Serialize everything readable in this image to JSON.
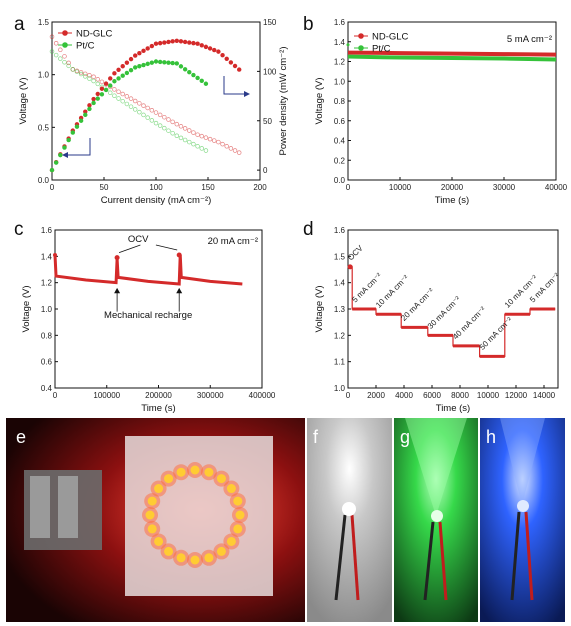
{
  "panels": {
    "a": "a",
    "b": "b",
    "c": "c",
    "d": "d",
    "e": "e",
    "f": "f",
    "g": "g",
    "h": "h"
  },
  "colors": {
    "ndglc": "#d42a2a",
    "ptc": "#35c23a",
    "axis": "#111111"
  },
  "photos": {
    "e": {
      "name": "led-ring-photo",
      "bg": "#1a0606",
      "led": "#ffcc33"
    },
    "f": {
      "name": "white-led-photo",
      "glow": "#ffffff"
    },
    "g": {
      "name": "green-led-photo",
      "glow": "#33ff55"
    },
    "h": {
      "name": "blue-led-photo",
      "glow": "#2a5bff"
    }
  },
  "chart_data": [
    {
      "panel": "a",
      "type": "scatter",
      "xlabel": "Current density (mA cm⁻²)",
      "ylabel": "Voltage (V)",
      "y2label": "Power density (mW cm⁻²)",
      "xlim": [
        0,
        200
      ],
      "ylim": [
        0.0,
        1.5
      ],
      "y2lim": [
        -10,
        150
      ],
      "xticks": [
        "0",
        "50",
        "100",
        "150",
        "200"
      ],
      "yticks": [
        "0.0",
        "0.5",
        "1.0",
        "1.5"
      ],
      "y2ticks": [
        "0",
        "50",
        "100",
        "150"
      ],
      "legend": [
        "ND-GLC",
        "Pt/C"
      ],
      "legend_position": "top-left",
      "series": [
        {
          "name": "ND-GLC",
          "kind": "voltage",
          "x_max": 182,
          "x": [
            0,
            20,
            40,
            60,
            80,
            100,
            120,
            140,
            160,
            182
          ],
          "y": [
            1.36,
            1.05,
            0.98,
            0.86,
            0.75,
            0.64,
            0.53,
            0.43,
            0.36,
            0.25
          ]
        },
        {
          "name": "Pt/C",
          "kind": "voltage",
          "x_max": 150,
          "x": [
            0,
            20,
            40,
            60,
            80,
            100,
            120,
            150
          ],
          "y": [
            1.22,
            1.05,
            0.94,
            0.8,
            0.67,
            0.54,
            0.42,
            0.27
          ]
        },
        {
          "name": "ND-GLC",
          "kind": "power",
          "x_max": 182,
          "x": [
            0,
            20,
            40,
            60,
            80,
            100,
            120,
            140,
            160,
            182
          ],
          "y": [
            0,
            40,
            72,
            98,
            116,
            128,
            131,
            128,
            120,
            100
          ]
        },
        {
          "name": "Pt/C",
          "kind": "power",
          "x_max": 150,
          "x": [
            0,
            20,
            40,
            60,
            80,
            100,
            120,
            150
          ],
          "y": [
            0,
            38,
            68,
            90,
            104,
            110,
            108,
            86
          ]
        }
      ]
    },
    {
      "panel": "b",
      "type": "scatter",
      "xlabel": "Time (s)",
      "ylabel": "Voltage (V)",
      "annotation": "5 mA cm⁻²",
      "xlim": [
        0,
        40000
      ],
      "ylim": [
        0.0,
        1.6
      ],
      "xticks": [
        "0",
        "10000",
        "20000",
        "30000",
        "40000"
      ],
      "yticks": [
        "0.0",
        "0.2",
        "0.4",
        "0.6",
        "0.8",
        "1.0",
        "1.2",
        "1.4",
        "1.6"
      ],
      "legend": [
        "ND-GLC",
        "Pt/C"
      ],
      "legend_position": "top-left",
      "series": [
        {
          "name": "ND-GLC",
          "x": [
            0,
            10000,
            20000,
            30000,
            40000
          ],
          "y": [
            1.29,
            1.285,
            1.28,
            1.275,
            1.27
          ]
        },
        {
          "name": "Pt/C",
          "x": [
            0,
            10000,
            20000,
            30000,
            40000
          ],
          "y": [
            1.25,
            1.24,
            1.235,
            1.23,
            1.22
          ]
        }
      ]
    },
    {
      "panel": "c",
      "type": "scatter",
      "xlabel": "Time (s)",
      "ylabel": "Voltage (V)",
      "annotation": "20 mA cm⁻²",
      "ocv_label": "OCV",
      "recharge_label": "Mechanical recharge",
      "xlim": [
        0,
        400000
      ],
      "ylim": [
        0.4,
        1.6
      ],
      "xticks": [
        "0",
        "100000",
        "200000",
        "300000",
        "400000"
      ],
      "yticks": [
        "0.4",
        "0.6",
        "0.8",
        "1.0",
        "1.2",
        "1.4",
        "1.6"
      ],
      "series": [
        {
          "name": "ND-GLC",
          "x": [
            0,
            2000,
            60000,
            118000,
            120000,
            122000,
            180000,
            240000,
            242000,
            244000,
            300000,
            362000
          ],
          "y": [
            1.41,
            1.25,
            1.22,
            1.2,
            1.38,
            1.24,
            1.21,
            1.19,
            1.41,
            1.24,
            1.21,
            1.19
          ]
        }
      ],
      "ocv_points": [
        [
          120000,
          1.39
        ],
        [
          240000,
          1.41
        ]
      ]
    },
    {
      "panel": "d",
      "type": "line",
      "xlabel": "Time (s)",
      "ylabel": "Voltage (V)",
      "xlim": [
        0,
        15000
      ],
      "ylim": [
        1.0,
        1.6
      ],
      "xticks": [
        "0",
        "2000",
        "4000",
        "6000",
        "8000",
        "10000",
        "12000",
        "14000"
      ],
      "yticks": [
        "1.0",
        "1.1",
        "1.2",
        "1.3",
        "1.4",
        "1.5",
        "1.6"
      ],
      "steps": [
        {
          "label": "OCV",
          "t0": 0,
          "t1": 300,
          "v": 1.46
        },
        {
          "label": "5 mA cm⁻²",
          "t0": 300,
          "t1": 2000,
          "v": 1.3
        },
        {
          "label": "10 mA cm⁻²",
          "t0": 2000,
          "t1": 3800,
          "v": 1.28
        },
        {
          "label": "20 mA cm⁻²",
          "t0": 3800,
          "t1": 5700,
          "v": 1.23
        },
        {
          "label": "30 mA cm⁻²",
          "t0": 5700,
          "t1": 7500,
          "v": 1.2
        },
        {
          "label": "40 mA cm⁻²",
          "t0": 7500,
          "t1": 9400,
          "v": 1.16
        },
        {
          "label": "50 mA cm⁻²",
          "t0": 9400,
          "t1": 11200,
          "v": 1.12
        },
        {
          "label": "10 mA cm⁻²",
          "t0": 11200,
          "t1": 13000,
          "v": 1.28
        },
        {
          "label": "5 mA cm⁻²",
          "t0": 13000,
          "t1": 14800,
          "v": 1.3
        }
      ]
    }
  ]
}
